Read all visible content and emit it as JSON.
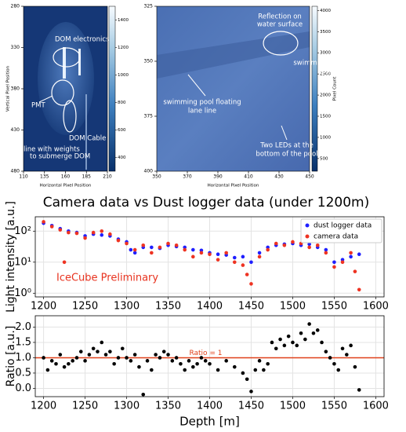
{
  "chart_data": [
    {
      "type": "image",
      "xlabel": "Horizontal Pixel Position",
      "ylabel": "Vertical Pixel Position",
      "xlim": [
        110,
        210
      ],
      "ylim": [
        480,
        280
      ],
      "xticks": [
        110,
        135,
        160,
        185,
        210
      ],
      "yticks": [
        280,
        330,
        380,
        430,
        480
      ],
      "colorbar_lim": [
        300,
        1500
      ],
      "colorbar_ticks": [
        400,
        600,
        800,
        1000,
        1200,
        1400
      ],
      "annotations": [
        [
          "DOM electronics"
        ],
        [
          "PMT"
        ],
        [
          "DOM Cable"
        ],
        [
          "line with weights",
          "to submerge DOM"
        ]
      ]
    },
    {
      "type": "image",
      "xlabel": "Horizontal Pixel Position",
      "colorbar_label": "Pixel Count",
      "xlim": [
        350,
        450
      ],
      "ylim": [
        400,
        325
      ],
      "xticks": [
        350,
        370,
        390,
        410,
        430,
        450
      ],
      "yticks": [
        325,
        350,
        375,
        400
      ],
      "colorbar_lim": [
        200,
        4100
      ],
      "colorbar_ticks": [
        500,
        1000,
        1500,
        2000,
        2500,
        3000,
        3500,
        4000
      ],
      "annotations": [
        [
          "Reflection on",
          "water surface"
        ],
        [
          "swimming pool floating",
          "lane line"
        ],
        [
          "swimming pool floating",
          "lane line"
        ],
        [
          "Two LEDs at the",
          "bottom of the pool"
        ]
      ]
    },
    {
      "type": "scatter",
      "title": "Camera data vs Dust logger data (under 1200m)",
      "ylabel": "Light intensity [a.u.]",
      "annotation": "IceCube Preliminary",
      "log_y": true,
      "grid": true,
      "legend": "upper right",
      "xlim": [
        1190,
        1610
      ],
      "ylim": [
        0.76,
        290
      ],
      "xticks": [
        1200,
        1250,
        1300,
        1350,
        1400,
        1450,
        1500,
        1550,
        1600
      ],
      "yticks": [
        {
          "value": 1,
          "label": "10⁰"
        },
        {
          "value": 10,
          "label": "10¹"
        },
        {
          "value": 100,
          "label": "10²"
        }
      ],
      "series": [
        {
          "name": "dust logger data",
          "color": "#1f1fff",
          "x": [
            1200,
            1210,
            1220,
            1230,
            1240,
            1250,
            1260,
            1270,
            1280,
            1290,
            1300,
            1305,
            1310,
            1320,
            1330,
            1340,
            1350,
            1360,
            1370,
            1380,
            1390,
            1400,
            1410,
            1420,
            1430,
            1440,
            1450,
            1460,
            1470,
            1480,
            1490,
            1500,
            1510,
            1520,
            1530,
            1540,
            1550,
            1560,
            1570,
            1580
          ],
          "values": [
            180,
            150,
            120,
            100,
            90,
            70,
            80,
            75,
            70,
            55,
            45,
            25,
            20,
            30,
            30,
            28,
            35,
            32,
            30,
            25,
            24,
            20,
            18,
            17,
            14,
            15,
            10,
            20,
            30,
            35,
            38,
            40,
            35,
            38,
            30,
            25,
            10,
            12,
            15,
            18
          ]
        },
        {
          "name": "camera data",
          "color": "#ee3322",
          "x": [
            1200,
            1210,
            1220,
            1225,
            1230,
            1240,
            1250,
            1260,
            1270,
            1280,
            1290,
            1300,
            1310,
            1320,
            1330,
            1340,
            1350,
            1360,
            1370,
            1380,
            1390,
            1400,
            1410,
            1420,
            1430,
            1440,
            1445,
            1450,
            1460,
            1470,
            1480,
            1490,
            1500,
            1510,
            1520,
            1530,
            1540,
            1550,
            1560,
            1570,
            1575,
            1580
          ],
          "values": [
            200,
            140,
            110,
            10,
            90,
            85,
            60,
            90,
            100,
            80,
            50,
            40,
            25,
            35,
            20,
            30,
            40,
            35,
            25,
            15,
            20,
            18,
            12,
            20,
            10,
            8,
            4,
            2,
            15,
            25,
            40,
            35,
            45,
            40,
            30,
            35,
            20,
            7,
            10,
            20,
            5,
            1.3
          ]
        }
      ]
    },
    {
      "type": "scatter",
      "xlabel": "Depth [m]",
      "ylabel": "Ratio [a.u.]",
      "grid": true,
      "xlim": [
        1190,
        1610
      ],
      "ylim": [
        -0.27,
        2.37
      ],
      "xticks": [
        1200,
        1250,
        1300,
        1350,
        1400,
        1450,
        1500,
        1550,
        1600
      ],
      "yticks": [
        {
          "value": 0,
          "label": "0.0"
        },
        {
          "value": 0.5,
          "label": "0.5"
        },
        {
          "value": 1,
          "label": "1.0"
        },
        {
          "value": 1.5,
          "label": "1.5"
        },
        {
          "value": 2,
          "label": "2.0"
        }
      ],
      "reference_line": {
        "value": 1,
        "label": "Ratio = 1",
        "color": "#e0401a"
      },
      "series": [
        {
          "color": "#000000",
          "x": [
            1200,
            1205,
            1210,
            1215,
            1220,
            1225,
            1230,
            1235,
            1240,
            1245,
            1250,
            1255,
            1260,
            1265,
            1270,
            1275,
            1280,
            1285,
            1290,
            1295,
            1300,
            1305,
            1310,
            1315,
            1320,
            1325,
            1330,
            1335,
            1340,
            1345,
            1350,
            1355,
            1360,
            1365,
            1370,
            1375,
            1380,
            1385,
            1390,
            1395,
            1400,
            1410,
            1420,
            1430,
            1440,
            1445,
            1450,
            1455,
            1460,
            1465,
            1470,
            1475,
            1480,
            1485,
            1490,
            1495,
            1500,
            1505,
            1510,
            1515,
            1520,
            1525,
            1530,
            1535,
            1540,
            1545,
            1550,
            1555,
            1560,
            1565,
            1570,
            1575,
            1580
          ],
          "values": [
            1.0,
            0.6,
            0.9,
            0.8,
            1.1,
            0.7,
            0.8,
            0.9,
            1.0,
            1.2,
            0.9,
            1.1,
            1.3,
            1.2,
            1.5,
            1.1,
            1.2,
            0.8,
            1.0,
            1.3,
            1.0,
            0.9,
            1.1,
            0.7,
            -0.2,
            0.9,
            0.6,
            1.1,
            1.0,
            1.2,
            1.1,
            0.9,
            1.0,
            0.8,
            0.6,
            0.9,
            0.7,
            0.8,
            1.0,
            0.9,
            0.8,
            0.6,
            0.9,
            0.7,
            0.5,
            0.3,
            -0.1,
            0.6,
            0.9,
            0.6,
            0.8,
            1.5,
            1.3,
            1.6,
            1.4,
            1.7,
            1.5,
            1.4,
            1.8,
            1.6,
            2.1,
            1.8,
            1.9,
            1.5,
            1.2,
            1.0,
            0.8,
            0.6,
            1.3,
            1.1,
            1.4,
            0.7,
            -0.05
          ]
        }
      ]
    }
  ]
}
